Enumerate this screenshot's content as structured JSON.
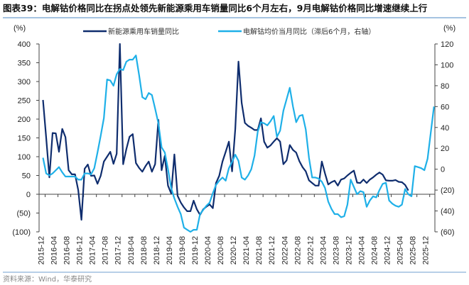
{
  "title": "图表39：电解钴价格同比在拐点处领先新能源乘用车销量同比6个月左右，9月电解钴价格同比增速继续上行",
  "source": "资料来源：Wind，华泰研究",
  "chart_data": {
    "type": "line",
    "title": "图表39：电解钴价格同比在拐点处领先新能源乘用车销量同比6个月左右，9月电解钴价格同比增速继续上行",
    "left_axis": {
      "label": "(%)",
      "ylim": [
        -100,
        400
      ],
      "ticks": [
        "(100)",
        "(50)",
        "0",
        "50",
        "100",
        "150",
        "200",
        "250",
        "300",
        "350",
        "400"
      ]
    },
    "right_axis": {
      "label": "(%)",
      "ylim": [
        -60,
        120
      ],
      "ticks": [
        "(60)",
        "(40)",
        "(20)",
        "0",
        "20",
        "40",
        "60",
        "80",
        "100",
        "120"
      ]
    },
    "x_tick_labels": [
      "2015-12",
      "2016-04",
      "2016-08",
      "2016-12",
      "2017-04",
      "2017-08",
      "2017-12",
      "2018-04",
      "2018-08",
      "2018-12",
      "2019-04",
      "2019-08",
      "2019-12",
      "2020-04",
      "2020-08",
      "2020-12",
      "2021-04",
      "2021-08",
      "2021-12",
      "2022-04",
      "2022-08",
      "2022-12",
      "2023-04",
      "2023-08",
      "2023-12",
      "2024-04",
      "2024-08",
      "2024-12",
      "2025-04",
      "2025-08",
      "2025-12"
    ],
    "grid": false,
    "legend_position": "top",
    "series": [
      {
        "name": "新能源乘用车销量同比",
        "axis": "left",
        "color": "#0f2d6e",
        "x_start": "2015-12",
        "values": [
          251,
          150,
          45,
          163,
          162,
          113,
          174,
          152,
          64,
          53,
          53,
          11,
          -68,
          68,
          79,
          49,
          50,
          28,
          49,
          87,
          100,
          113,
          81,
          108,
          400,
          80,
          120,
          153,
          160,
          83,
          70,
          60,
          75,
          87,
          60,
          80,
          198,
          64,
          102,
          23,
          2,
          106,
          -4,
          -22,
          -35,
          -45,
          -45,
          -17,
          -40,
          -55,
          -40,
          -33,
          -27,
          -37,
          30,
          49,
          87,
          113,
          140,
          61,
          174,
          353,
          243,
          190,
          182,
          177,
          171,
          171,
          202,
          140,
          124,
          130,
          140,
          149,
          140,
          80,
          90,
          131,
          118,
          111,
          88,
          72,
          61,
          37,
          30,
          23,
          23,
          87,
          55,
          26,
          32,
          36,
          23,
          39,
          42,
          50,
          57,
          63,
          31,
          30,
          39,
          30,
          39,
          45,
          52,
          58,
          52,
          37,
          36,
          36,
          38,
          33,
          32,
          25,
          10
        ]
      },
      {
        "name": "电解钴均价当月同比（滞后6个月，右轴）",
        "axis": "right",
        "color": "#1fb0e8",
        "x_start": "2015-12",
        "values": [
          11,
          -4,
          -6,
          -4,
          -1,
          2,
          -3,
          -7,
          -7,
          -7,
          -7,
          -10,
          -10,
          -4,
          -4,
          -5,
          1,
          16,
          32,
          49,
          86,
          85,
          80,
          91,
          96,
          95,
          103,
          105,
          105,
          109,
          90,
          69,
          67,
          73,
          71,
          58,
          44,
          21,
          16,
          0,
          -18,
          -28,
          -36,
          -43,
          -56,
          -58,
          -60,
          -58,
          -58,
          -43,
          -39,
          -35,
          -32,
          -23,
          -15,
          -11,
          -8,
          -11,
          1,
          7,
          14,
          8,
          -8,
          -10,
          -6,
          0,
          13,
          36,
          45,
          44,
          42,
          46,
          51,
          31,
          37,
          56,
          67,
          78,
          60,
          45,
          51,
          52,
          38,
          11,
          -8,
          -8,
          -9,
          -12,
          -18,
          -31,
          -38,
          -43,
          -43,
          -46,
          -45,
          -34,
          -10,
          -17,
          -24,
          -21,
          -22,
          -36,
          -30,
          -26,
          -27,
          -20,
          -14,
          -13,
          -30,
          -33,
          -35,
          -36,
          -34,
          -19,
          -24,
          -26,
          3,
          2,
          1,
          -1,
          10,
          35,
          60
        ]
      }
    ]
  }
}
